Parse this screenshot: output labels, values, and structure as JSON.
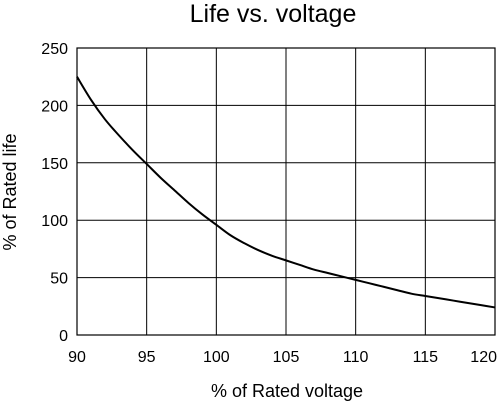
{
  "chart_data": {
    "type": "line",
    "title": "Life vs. voltage",
    "xlabel": "% of Rated voltage",
    "ylabel": "% of Rated life",
    "xlim": [
      90,
      120
    ],
    "ylim": [
      0,
      250
    ],
    "x_ticks": [
      90,
      95,
      100,
      105,
      110,
      115,
      120
    ],
    "y_ticks": [
      0,
      50,
      100,
      150,
      200,
      250
    ],
    "grid": true,
    "series": [
      {
        "x": [
          90,
          91,
          92,
          93,
          94,
          95,
          96,
          97,
          98,
          99,
          100,
          101,
          102,
          103,
          104,
          105,
          106,
          107,
          108,
          109,
          110,
          111,
          112,
          113,
          114,
          115,
          116,
          117,
          118,
          119,
          120
        ],
        "y": [
          225,
          205,
          188,
          174,
          161,
          149,
          137,
          126,
          115,
          105,
          96,
          87,
          80,
          74,
          69,
          65,
          61,
          57,
          54,
          51,
          48,
          45,
          42,
          39,
          36,
          34,
          32,
          30,
          28,
          26,
          24
        ],
        "color": "#000000"
      }
    ]
  }
}
